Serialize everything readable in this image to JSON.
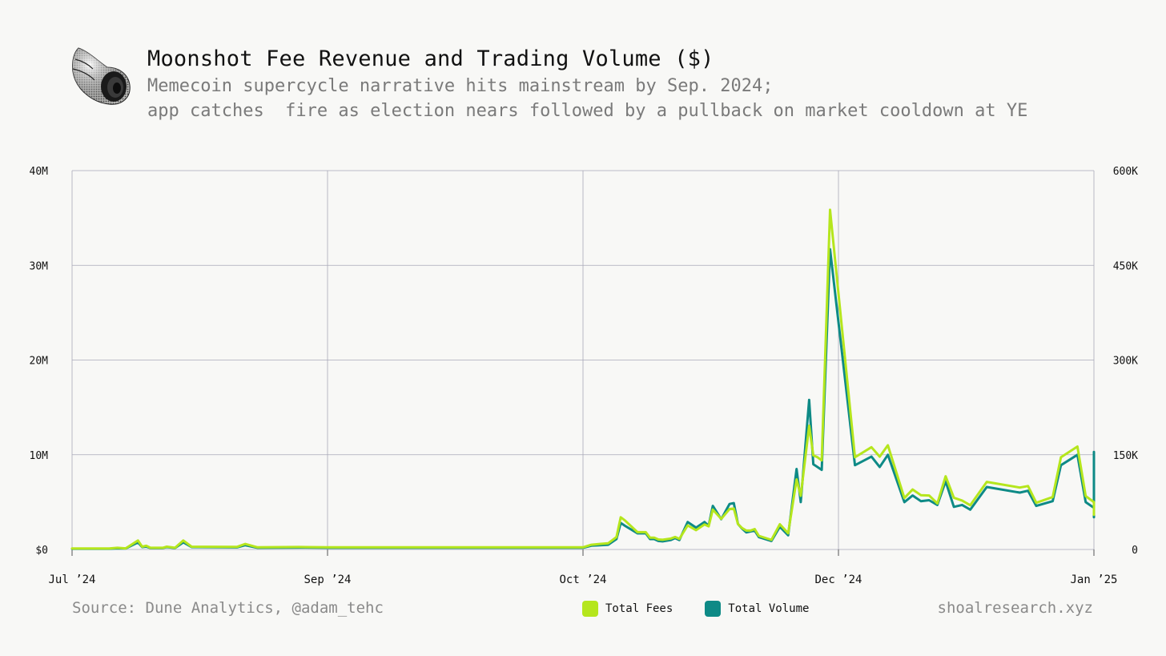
{
  "header": {
    "title": "Moonshot Fee Revenue and Trading Volume ($)",
    "subtitle_line1": "Memecoin supercycle narrative hits mainstream by Sep. 2024;",
    "subtitle_line2": "app catches  fire as election nears followed by a pullback on market cooldown at YE"
  },
  "footer": {
    "source": "Source: Dune Analytics, @adam_tehc",
    "website": "shoalresearch.xyz"
  },
  "chart_data": {
    "type": "line",
    "title": "Moonshot Fee Revenue and Trading Volume ($)",
    "xlim": [
      "2024-07-01",
      "2025-01-01"
    ],
    "x_ticks": [
      {
        "date": "2024-07-01",
        "label": "Jul ’24"
      },
      {
        "date": "2024-09-01",
        "label": "Sep ’24"
      },
      {
        "date": "2024-10-01",
        "label": "Oct ’24"
      },
      {
        "date": "2024-12-01",
        "label": "Dec ’24"
      },
      {
        "date": "2025-01-01",
        "label": "Jan ’25"
      }
    ],
    "y_left": {
      "min": 0,
      "max": 40000000,
      "ticks": [
        0,
        10000000,
        20000000,
        30000000,
        40000000
      ],
      "tick_labels": [
        "$0",
        "10M",
        "20M",
        "30M",
        "40M"
      ]
    },
    "y_right": {
      "min": 0,
      "max": 600000,
      "ticks": [
        0,
        150000,
        300000,
        450000,
        600000
      ],
      "tick_labels": [
        "0",
        "150K",
        "300K",
        "450K",
        "600K"
      ]
    },
    "grid": true,
    "legend_position": "bottom-center",
    "series": [
      {
        "name": "Total Fees",
        "axis": "right",
        "color": "#b5e61d",
        "points": [
          [
            "2024-07-01",
            1500
          ],
          [
            "2024-07-05",
            1500
          ],
          [
            "2024-07-10",
            1500
          ],
          [
            "2024-07-12",
            2700
          ],
          [
            "2024-07-14",
            1800
          ],
          [
            "2024-07-17",
            14200
          ],
          [
            "2024-07-18",
            4500
          ],
          [
            "2024-07-19",
            5800
          ],
          [
            "2024-07-20",
            2700
          ],
          [
            "2024-07-23",
            2700
          ],
          [
            "2024-07-24",
            4500
          ],
          [
            "2024-07-26",
            2700
          ],
          [
            "2024-07-28",
            14200
          ],
          [
            "2024-07-30",
            4500
          ],
          [
            "2024-08-10",
            4000
          ],
          [
            "2024-08-12",
            8700
          ],
          [
            "2024-08-15",
            3400
          ],
          [
            "2024-08-25",
            3900
          ],
          [
            "2024-09-01",
            3400
          ],
          [
            "2024-09-30",
            3400
          ],
          [
            "2024-10-01",
            3400
          ],
          [
            "2024-10-03",
            7500
          ],
          [
            "2024-10-05",
            8700
          ],
          [
            "2024-10-07",
            9800
          ],
          [
            "2024-10-09",
            19700
          ],
          [
            "2024-10-10",
            51000
          ],
          [
            "2024-10-11",
            46000
          ],
          [
            "2024-10-14",
            27400
          ],
          [
            "2024-10-16",
            27400
          ],
          [
            "2024-10-17",
            18700
          ],
          [
            "2024-10-18",
            18700
          ],
          [
            "2024-10-19",
            15800
          ],
          [
            "2024-10-20",
            15400
          ],
          [
            "2024-10-22",
            17400
          ],
          [
            "2024-10-23",
            19800
          ],
          [
            "2024-10-24",
            16700
          ],
          [
            "2024-10-26",
            38000
          ],
          [
            "2024-10-28",
            30600
          ],
          [
            "2024-10-30",
            39600
          ],
          [
            "2024-10-31",
            36600
          ],
          [
            "2024-11-01",
            63200
          ],
          [
            "2024-11-03",
            48400
          ],
          [
            "2024-11-05",
            64000
          ],
          [
            "2024-11-06",
            64800
          ],
          [
            "2024-11-07",
            40300
          ],
          [
            "2024-11-08",
            33900
          ],
          [
            "2024-11-09",
            30000
          ],
          [
            "2024-11-10",
            30000
          ],
          [
            "2024-11-11",
            32400
          ],
          [
            "2024-11-12",
            21600
          ],
          [
            "2024-11-15",
            15200
          ],
          [
            "2024-11-17",
            40000
          ],
          [
            "2024-11-19",
            25600
          ],
          [
            "2024-11-21",
            111000
          ],
          [
            "2024-11-22",
            85000
          ],
          [
            "2024-11-24",
            196000
          ],
          [
            "2024-11-25",
            149000
          ],
          [
            "2024-11-26",
            146000
          ],
          [
            "2024-11-27",
            141000
          ],
          [
            "2024-11-29",
            538000
          ],
          [
            "2024-12-03",
            146000
          ],
          [
            "2024-12-05",
            162000
          ],
          [
            "2024-12-06",
            147000
          ],
          [
            "2024-12-07",
            165000
          ],
          [
            "2024-12-09",
            81500
          ],
          [
            "2024-12-10",
            95000
          ],
          [
            "2024-12-11",
            86000
          ],
          [
            "2024-12-12",
            85500
          ],
          [
            "2024-12-13",
            73000
          ],
          [
            "2024-12-14",
            116000
          ],
          [
            "2024-12-15",
            82000
          ],
          [
            "2024-12-16",
            77500
          ],
          [
            "2024-12-17",
            70000
          ],
          [
            "2024-12-19",
            107000
          ],
          [
            "2024-12-23",
            98000
          ],
          [
            "2024-12-24",
            100500
          ],
          [
            "2024-12-25",
            74000
          ],
          [
            "2024-12-27",
            83000
          ],
          [
            "2024-12-28",
            146000
          ],
          [
            "2024-12-30",
            163000
          ],
          [
            "2024-12-31",
            84500
          ],
          [
            "2025-01-01",
            75000
          ],
          [
            "2025-01-03",
            72000
          ],
          [
            "2025-01-05",
            61000
          ],
          [
            "2025-01-06",
            57000
          ],
          [
            "2025-01-07",
            59000
          ],
          [
            "2025-01-08",
            64000
          ],
          [
            "2025-01-10",
            55000
          ]
        ]
      },
      {
        "name": "Total Volume",
        "axis": "left",
        "color": "#0e8a86",
        "points": [
          [
            "2024-07-01",
            80000
          ],
          [
            "2024-07-10",
            80000
          ],
          [
            "2024-07-12",
            120000
          ],
          [
            "2024-07-14",
            100000
          ],
          [
            "2024-07-17",
            750000
          ],
          [
            "2024-07-18",
            250000
          ],
          [
            "2024-07-19",
            300000
          ],
          [
            "2024-07-20",
            150000
          ],
          [
            "2024-07-23",
            150000
          ],
          [
            "2024-07-24",
            250000
          ],
          [
            "2024-07-26",
            150000
          ],
          [
            "2024-07-28",
            750000
          ],
          [
            "2024-07-30",
            250000
          ],
          [
            "2024-08-10",
            220000
          ],
          [
            "2024-08-12",
            450000
          ],
          [
            "2024-08-15",
            180000
          ],
          [
            "2024-08-25",
            200000
          ],
          [
            "2024-09-01",
            180000
          ],
          [
            "2024-09-30",
            180000
          ],
          [
            "2024-10-01",
            180000
          ],
          [
            "2024-10-03",
            400000
          ],
          [
            "2024-10-05",
            450000
          ],
          [
            "2024-10-07",
            500000
          ],
          [
            "2024-10-09",
            1100000
          ],
          [
            "2024-10-10",
            2800000
          ],
          [
            "2024-10-11",
            2500000
          ],
          [
            "2024-10-14",
            1700000
          ],
          [
            "2024-10-16",
            1700000
          ],
          [
            "2024-10-17",
            1100000
          ],
          [
            "2024-10-18",
            1100000
          ],
          [
            "2024-10-19",
            900000
          ],
          [
            "2024-10-20",
            850000
          ],
          [
            "2024-10-22",
            1000000
          ],
          [
            "2024-10-23",
            1200000
          ],
          [
            "2024-10-24",
            1000000
          ],
          [
            "2024-10-26",
            2900000
          ],
          [
            "2024-10-28",
            2300000
          ],
          [
            "2024-10-30",
            2900000
          ],
          [
            "2024-10-31",
            2500000
          ],
          [
            "2024-11-01",
            4600000
          ],
          [
            "2024-11-03",
            3200000
          ],
          [
            "2024-11-05",
            4800000
          ],
          [
            "2024-11-06",
            4900000
          ],
          [
            "2024-11-07",
            2700000
          ],
          [
            "2024-11-08",
            2200000
          ],
          [
            "2024-11-09",
            1800000
          ],
          [
            "2024-11-10",
            1900000
          ],
          [
            "2024-11-11",
            2000000
          ],
          [
            "2024-11-12",
            1300000
          ],
          [
            "2024-11-15",
            900000
          ],
          [
            "2024-11-17",
            2400000
          ],
          [
            "2024-11-19",
            1500000
          ],
          [
            "2024-11-21",
            8500000
          ],
          [
            "2024-11-22",
            5000000
          ],
          [
            "2024-11-24",
            15800000
          ],
          [
            "2024-11-25",
            9000000
          ],
          [
            "2024-11-26",
            8700000
          ],
          [
            "2024-11-27",
            8400000
          ],
          [
            "2024-11-29",
            31700000
          ],
          [
            "2024-12-03",
            8900000
          ],
          [
            "2024-12-05",
            9800000
          ],
          [
            "2024-12-06",
            8700000
          ],
          [
            "2024-12-07",
            10000000
          ],
          [
            "2024-12-09",
            5000000
          ],
          [
            "2024-12-10",
            5700000
          ],
          [
            "2024-12-11",
            5100000
          ],
          [
            "2024-12-12",
            5200000
          ],
          [
            "2024-12-13",
            4700000
          ],
          [
            "2024-12-14",
            7200000
          ],
          [
            "2024-12-15",
            4500000
          ],
          [
            "2024-12-16",
            4700000
          ],
          [
            "2024-12-17",
            4200000
          ],
          [
            "2024-12-19",
            6600000
          ],
          [
            "2024-12-23",
            6000000
          ],
          [
            "2024-12-24",
            6200000
          ],
          [
            "2024-12-25",
            4600000
          ],
          [
            "2024-12-27",
            5100000
          ],
          [
            "2024-12-28",
            8900000
          ],
          [
            "2024-12-30",
            10000000
          ],
          [
            "2024-12-31",
            5000000
          ],
          [
            "2025-01-01",
            4400000
          ],
          [
            "2025-01-03",
            4000000
          ],
          [
            "2025-01-05",
            3400000
          ],
          [
            "2025-01-06",
            10300000
          ],
          [
            "2025-01-07",
            4300000
          ],
          [
            "2025-01-08",
            4700000
          ],
          [
            "2025-01-10",
            3700000
          ]
        ]
      }
    ]
  }
}
